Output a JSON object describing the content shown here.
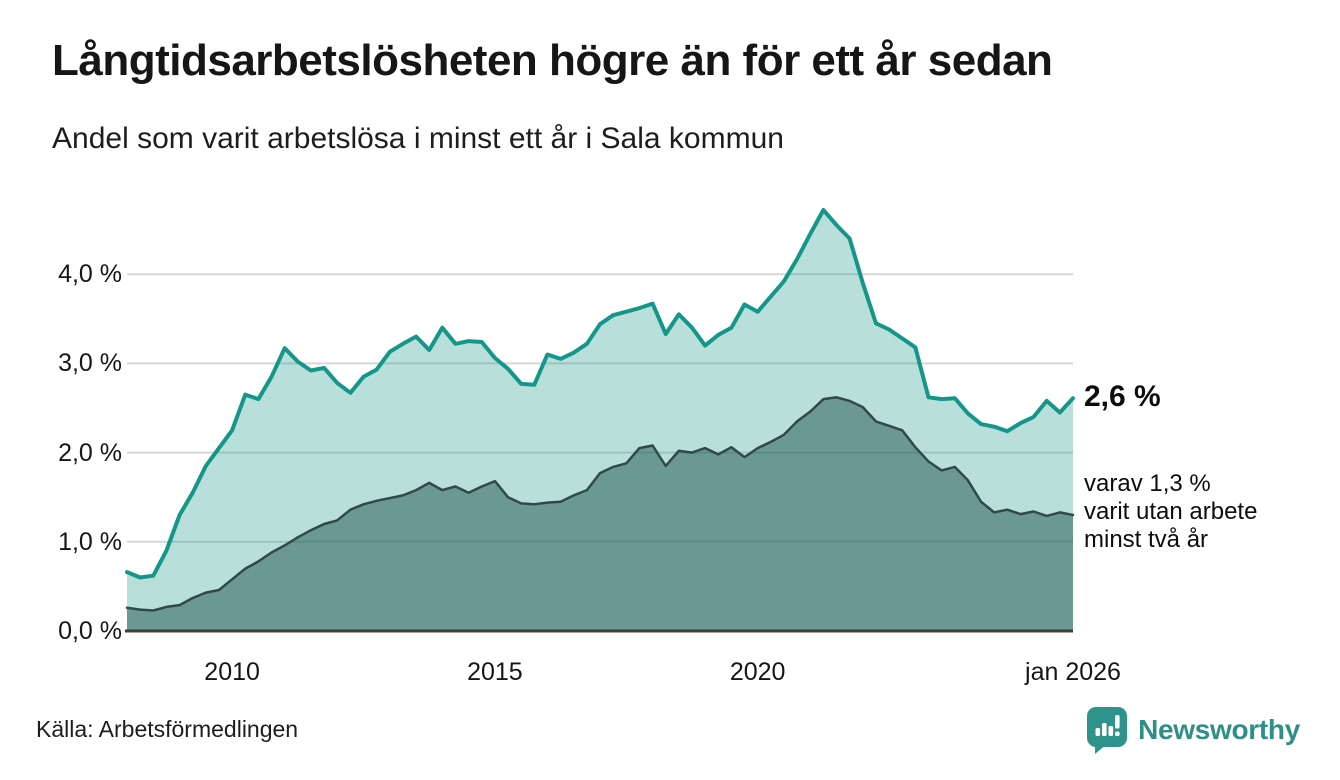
{
  "chart_data": {
    "type": "area",
    "title": "Långtidsarbetslösheten högre än för ett år sedan",
    "subtitle": "Andel som varit arbetslösa i minst ett år i Sala kommun",
    "xlabel": "",
    "ylabel": "",
    "xlim": [
      2008,
      2026
    ],
    "ylim": [
      0,
      5
    ],
    "grid": "horizontal",
    "legend_position": "none",
    "colors": {
      "grid": "#d7d7d7",
      "axis": "#3a403e",
      "accent_teal": "#149688",
      "dark_slate": "#2e4b48"
    },
    "y_ticks": [
      {
        "value": 0,
        "label": "0,0 %"
      },
      {
        "value": 1,
        "label": "1,0 %"
      },
      {
        "value": 2,
        "label": "2,0 %"
      },
      {
        "value": 3,
        "label": "3,0 %"
      },
      {
        "value": 4,
        "label": "4,0 %"
      }
    ],
    "x_ticks": [
      {
        "year": 2010,
        "label": "2010"
      },
      {
        "year": 2015,
        "label": "2015"
      },
      {
        "year": 2020,
        "label": "2020"
      },
      {
        "year": 2026,
        "label": "jan 2026"
      }
    ],
    "series": [
      {
        "name": "Andel arbetslösa minst ett år",
        "end_value_pct": 2.6,
        "line_color": "#149688",
        "fill_color": "rgba(23,150,136,0.30)",
        "points": [
          [
            2008.0,
            0.66
          ],
          [
            2008.25,
            0.6
          ],
          [
            2008.5,
            0.62
          ],
          [
            2008.75,
            0.9
          ],
          [
            2009.0,
            1.3
          ],
          [
            2009.25,
            1.55
          ],
          [
            2009.5,
            1.85
          ],
          [
            2009.75,
            2.05
          ],
          [
            2010.0,
            2.25
          ],
          [
            2010.25,
            2.65
          ],
          [
            2010.5,
            2.6
          ],
          [
            2010.75,
            2.85
          ],
          [
            2011.0,
            3.17
          ],
          [
            2011.25,
            3.02
          ],
          [
            2011.5,
            2.92
          ],
          [
            2011.75,
            2.95
          ],
          [
            2012.0,
            2.78
          ],
          [
            2012.25,
            2.67
          ],
          [
            2012.5,
            2.85
          ],
          [
            2012.75,
            2.93
          ],
          [
            2013.0,
            3.13
          ],
          [
            2013.25,
            3.22
          ],
          [
            2013.5,
            3.3
          ],
          [
            2013.75,
            3.15
          ],
          [
            2014.0,
            3.4
          ],
          [
            2014.25,
            3.22
          ],
          [
            2014.5,
            3.25
          ],
          [
            2014.75,
            3.24
          ],
          [
            2015.0,
            3.06
          ],
          [
            2015.25,
            2.94
          ],
          [
            2015.5,
            2.77
          ],
          [
            2015.75,
            2.76
          ],
          [
            2016.0,
            3.1
          ],
          [
            2016.25,
            3.05
          ],
          [
            2016.5,
            3.12
          ],
          [
            2016.75,
            3.22
          ],
          [
            2017.0,
            3.44
          ],
          [
            2017.25,
            3.54
          ],
          [
            2017.5,
            3.58
          ],
          [
            2017.75,
            3.62
          ],
          [
            2018.0,
            3.67
          ],
          [
            2018.25,
            3.33
          ],
          [
            2018.5,
            3.55
          ],
          [
            2018.75,
            3.4
          ],
          [
            2019.0,
            3.2
          ],
          [
            2019.25,
            3.32
          ],
          [
            2019.5,
            3.4
          ],
          [
            2019.75,
            3.66
          ],
          [
            2020.0,
            3.58
          ],
          [
            2020.25,
            3.75
          ],
          [
            2020.5,
            3.92
          ],
          [
            2020.75,
            4.17
          ],
          [
            2021.0,
            4.45
          ],
          [
            2021.25,
            4.72
          ],
          [
            2021.5,
            4.55
          ],
          [
            2021.75,
            4.4
          ],
          [
            2022.0,
            3.9
          ],
          [
            2022.25,
            3.45
          ],
          [
            2022.5,
            3.38
          ],
          [
            2022.75,
            3.28
          ],
          [
            2023.0,
            3.18
          ],
          [
            2023.25,
            2.62
          ],
          [
            2023.5,
            2.6
          ],
          [
            2023.75,
            2.61
          ],
          [
            2024.0,
            2.44
          ],
          [
            2024.25,
            2.32
          ],
          [
            2024.5,
            2.29
          ],
          [
            2024.75,
            2.24
          ],
          [
            2025.0,
            2.33
          ],
          [
            2025.25,
            2.4
          ],
          [
            2025.5,
            2.58
          ],
          [
            2025.75,
            2.45
          ],
          [
            2026.0,
            2.61
          ]
        ]
      },
      {
        "name": "Andel arbetslösa minst två år",
        "end_value_pct": 1.3,
        "line_color": "#2e4b48",
        "fill_color": "rgba(31,82,75,0.50)",
        "points": [
          [
            2008.0,
            0.26
          ],
          [
            2008.25,
            0.24
          ],
          [
            2008.5,
            0.23
          ],
          [
            2008.75,
            0.27
          ],
          [
            2009.0,
            0.29
          ],
          [
            2009.25,
            0.37
          ],
          [
            2009.5,
            0.43
          ],
          [
            2009.75,
            0.46
          ],
          [
            2010.0,
            0.58
          ],
          [
            2010.25,
            0.7
          ],
          [
            2010.5,
            0.78
          ],
          [
            2010.75,
            0.88
          ],
          [
            2011.0,
            0.96
          ],
          [
            2011.25,
            1.05
          ],
          [
            2011.5,
            1.13
          ],
          [
            2011.75,
            1.2
          ],
          [
            2012.0,
            1.24
          ],
          [
            2012.25,
            1.36
          ],
          [
            2012.5,
            1.42
          ],
          [
            2012.75,
            1.46
          ],
          [
            2013.0,
            1.49
          ],
          [
            2013.25,
            1.52
          ],
          [
            2013.5,
            1.58
          ],
          [
            2013.75,
            1.66
          ],
          [
            2014.0,
            1.58
          ],
          [
            2014.25,
            1.62
          ],
          [
            2014.5,
            1.55
          ],
          [
            2014.75,
            1.62
          ],
          [
            2015.0,
            1.68
          ],
          [
            2015.25,
            1.5
          ],
          [
            2015.5,
            1.43
          ],
          [
            2015.75,
            1.42
          ],
          [
            2016.0,
            1.44
          ],
          [
            2016.25,
            1.45
          ],
          [
            2016.5,
            1.52
          ],
          [
            2016.75,
            1.58
          ],
          [
            2017.0,
            1.77
          ],
          [
            2017.25,
            1.84
          ],
          [
            2017.5,
            1.88
          ],
          [
            2017.75,
            2.05
          ],
          [
            2018.0,
            2.08
          ],
          [
            2018.25,
            1.85
          ],
          [
            2018.5,
            2.02
          ],
          [
            2018.75,
            2.0
          ],
          [
            2019.0,
            2.05
          ],
          [
            2019.25,
            1.98
          ],
          [
            2019.5,
            2.06
          ],
          [
            2019.75,
            1.95
          ],
          [
            2020.0,
            2.05
          ],
          [
            2020.25,
            2.12
          ],
          [
            2020.5,
            2.2
          ],
          [
            2020.75,
            2.35
          ],
          [
            2021.0,
            2.46
          ],
          [
            2021.25,
            2.6
          ],
          [
            2021.5,
            2.62
          ],
          [
            2021.75,
            2.58
          ],
          [
            2022.0,
            2.51
          ],
          [
            2022.25,
            2.35
          ],
          [
            2022.5,
            2.3
          ],
          [
            2022.75,
            2.25
          ],
          [
            2023.0,
            2.06
          ],
          [
            2023.25,
            1.9
          ],
          [
            2023.5,
            1.8
          ],
          [
            2023.75,
            1.84
          ],
          [
            2024.0,
            1.69
          ],
          [
            2024.25,
            1.45
          ],
          [
            2024.5,
            1.33
          ],
          [
            2024.75,
            1.36
          ],
          [
            2025.0,
            1.31
          ],
          [
            2025.25,
            1.34
          ],
          [
            2025.5,
            1.29
          ],
          [
            2025.75,
            1.33
          ],
          [
            2026.0,
            1.3
          ]
        ]
      }
    ],
    "annotations": {
      "end_value_label": "2,6 %",
      "note": "varav 1,3 %\nvarit utan arbete\nminst två år"
    }
  },
  "footer": {
    "source": "Källa: Arbetsförmedlingen",
    "brand": "Newsworthy"
  }
}
